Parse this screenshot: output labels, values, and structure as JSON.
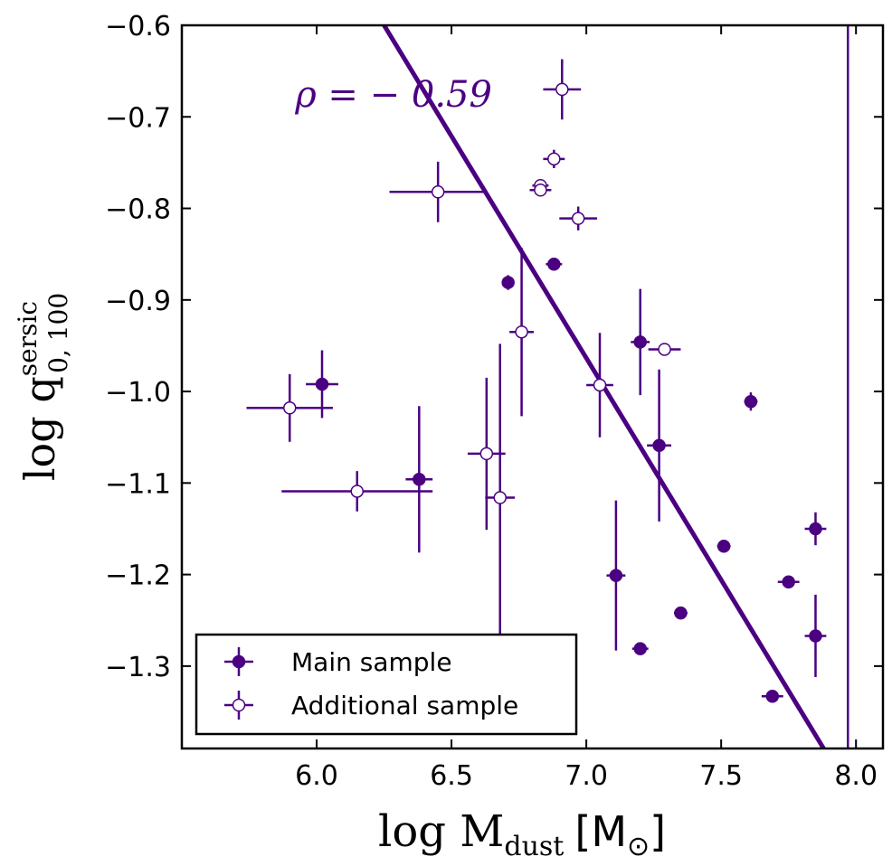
{
  "chart_data": {
    "type": "scatter",
    "title": "",
    "xlabel": "log M_dust [M☉]",
    "ylabel": "log q_0,100^sersic",
    "xlabel_parts": {
      "math": "log M",
      "sub": "dust",
      "unit_open": "[M",
      "unit_sub": "⊙",
      "unit_close": "]"
    },
    "ylabel_parts": {
      "math": "log q",
      "sub": "0, 100",
      "sup": "sersic"
    },
    "xlim": [
      5.5,
      8.1
    ],
    "ylim": [
      -1.39,
      -0.6
    ],
    "xticks": [
      6.0,
      6.5,
      7.0,
      7.5,
      8.0
    ],
    "xtick_labels": [
      "6.0",
      "6.5",
      "7.0",
      "7.5",
      "8.0"
    ],
    "yticks": [
      -0.6,
      -0.7,
      -0.8,
      -0.9,
      -1.0,
      -1.1,
      -1.2,
      -1.3
    ],
    "ytick_labels": [
      "−0.6",
      "−0.7",
      "−0.8",
      "−0.9",
      "−1.0",
      "−1.1",
      "−1.2",
      "−1.3"
    ],
    "grid": false,
    "legend_position": "lower-left",
    "color": "#4b0082",
    "annotation": {
      "text": "ρ = − 0.59",
      "x": 5.92,
      "y": -0.675
    },
    "fit_line": {
      "x": [
        6.25,
        7.88
      ],
      "y": [
        -0.6,
        -1.39
      ]
    },
    "vertical_line": {
      "x": 7.97
    },
    "series": [
      {
        "name": "Main sample",
        "filled": true,
        "points": [
          {
            "x": 6.02,
            "y": -0.992,
            "xerr": 0.06,
            "yerr": 0.037
          },
          {
            "x": 6.38,
            "y": -1.096,
            "xerr": 0.05,
            "yerr": 0.08
          },
          {
            "x": 6.71,
            "y": -0.881,
            "xerr": 0.02,
            "yerr": 0.008
          },
          {
            "x": 6.88,
            "y": -0.861,
            "xerr": 0.03,
            "yerr": 0.005
          },
          {
            "x": 7.11,
            "y": -1.201,
            "xerr": 0.035,
            "yerr": 0.082
          },
          {
            "x": 7.2,
            "y": -0.946,
            "xerr": 0.035,
            "yerr": 0.058
          },
          {
            "x": 7.2,
            "y": -1.281,
            "xerr": 0.03,
            "yerr": 0.005
          },
          {
            "x": 7.27,
            "y": -1.059,
            "xerr": 0.045,
            "yerr": 0.083
          },
          {
            "x": 7.35,
            "y": -1.242,
            "xerr": 0.025,
            "yerr": 0.005
          },
          {
            "x": 7.51,
            "y": -1.169,
            "xerr": 0.025,
            "yerr": 0.005
          },
          {
            "x": 7.61,
            "y": -1.011,
            "xerr": 0.025,
            "yerr": 0.01
          },
          {
            "x": 7.69,
            "y": -1.333,
            "xerr": 0.04,
            "yerr": 0.005
          },
          {
            "x": 7.75,
            "y": -1.208,
            "xerr": 0.04,
            "yerr": 0.005
          },
          {
            "x": 7.85,
            "y": -1.15,
            "xerr": 0.04,
            "yerr": 0.018
          },
          {
            "x": 7.85,
            "y": -1.267,
            "xerr": 0.04,
            "yerr": 0.045
          }
        ]
      },
      {
        "name": "Additional sample",
        "filled": false,
        "points": [
          {
            "x": 5.9,
            "y": -1.018,
            "xerr": 0.16,
            "yerr": 0.037
          },
          {
            "x": 6.15,
            "y": -1.109,
            "xerr": 0.28,
            "yerr": 0.022
          },
          {
            "x": 6.45,
            "y": -0.782,
            "xerr": 0.18,
            "yerr": 0.033
          },
          {
            "x": 6.63,
            "y": -1.068,
            "xerr": 0.07,
            "yerr": 0.083
          },
          {
            "x": 6.68,
            "y": -1.116,
            "xerr": 0.055,
            "yerr": 0.168
          },
          {
            "x": 6.76,
            "y": -0.935,
            "xerr": 0.045,
            "yerr": 0.092
          },
          {
            "x": 6.83,
            "y": -0.775,
            "xerr": 0.03,
            "yerr": 0.005
          },
          {
            "x": 6.83,
            "y": -0.78,
            "xerr": 0.04,
            "yerr": 0.005
          },
          {
            "x": 6.88,
            "y": -0.746,
            "xerr": 0.04,
            "yerr": 0.01
          },
          {
            "x": 6.91,
            "y": -0.67,
            "xerr": 0.07,
            "yerr": 0.033
          },
          {
            "x": 6.97,
            "y": -0.811,
            "xerr": 0.07,
            "yerr": 0.013
          },
          {
            "x": 7.05,
            "y": -0.993,
            "xerr": 0.05,
            "yerr": 0.057
          },
          {
            "x": 7.29,
            "y": -0.954,
            "xerr": 0.06,
            "yerr": 0.005
          }
        ]
      }
    ]
  }
}
